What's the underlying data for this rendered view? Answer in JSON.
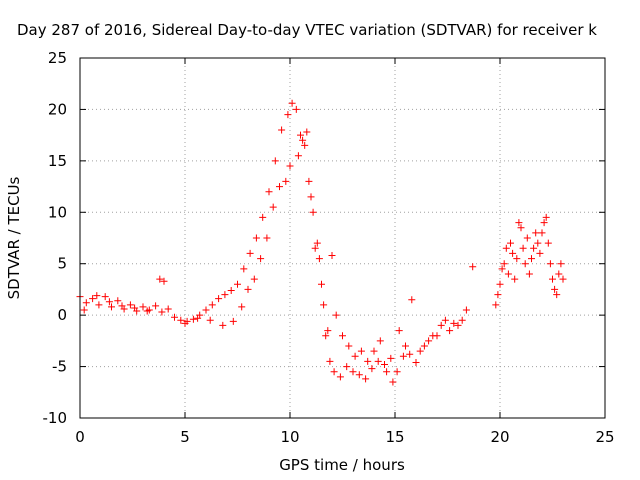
{
  "chart_data": {
    "type": "scatter",
    "title": "Day 287 of 2016, Sidereal Day-to-day VTEC variation (SDTVAR) for receiver k",
    "xlabel": "GPS time / hours",
    "ylabel": "SDTVAR / TECUs",
    "xlim": [
      0,
      25
    ],
    "ylim": [
      -10,
      25
    ],
    "xticks": [
      "0",
      "5",
      "10",
      "15",
      "20",
      "25"
    ],
    "yticks": [
      "-10",
      "-5",
      "0",
      "5",
      "10",
      "15",
      "20",
      "25"
    ],
    "grid": true,
    "marker": "+",
    "color": "#ff0000",
    "series": [
      {
        "name": "SDTVAR",
        "points": [
          [
            0.0,
            1.8
          ],
          [
            0.3,
            1.2
          ],
          [
            0.6,
            1.6
          ],
          [
            0.9,
            1.0
          ],
          [
            1.2,
            1.8
          ],
          [
            1.5,
            0.8
          ],
          [
            1.8,
            1.4
          ],
          [
            2.1,
            0.6
          ],
          [
            2.4,
            1.0
          ],
          [
            2.7,
            0.4
          ],
          [
            3.0,
            0.8
          ],
          [
            3.3,
            0.5
          ],
          [
            3.6,
            0.9
          ],
          [
            3.9,
            0.3
          ],
          [
            4.2,
            0.6
          ],
          [
            4.5,
            -0.2
          ],
          [
            4.8,
            -0.5
          ],
          [
            5.1,
            -0.6
          ],
          [
            5.4,
            -0.4
          ],
          [
            5.7,
            0.0
          ],
          [
            6.0,
            0.5
          ],
          [
            6.3,
            1.0
          ],
          [
            6.6,
            1.6
          ],
          [
            6.9,
            2.0
          ],
          [
            7.2,
            2.4
          ],
          [
            7.5,
            3.0
          ],
          [
            7.8,
            4.5
          ],
          [
            8.1,
            6.0
          ],
          [
            8.4,
            7.5
          ],
          [
            8.7,
            9.5
          ],
          [
            9.0,
            12.0
          ],
          [
            9.3,
            15.0
          ],
          [
            9.6,
            18.0
          ],
          [
            9.9,
            19.5
          ],
          [
            10.1,
            20.6
          ],
          [
            10.3,
            20.0
          ],
          [
            10.5,
            17.5
          ],
          [
            10.7,
            16.5
          ],
          [
            10.9,
            13.0
          ],
          [
            11.1,
            10.0
          ],
          [
            11.3,
            7.0
          ],
          [
            11.5,
            3.0
          ],
          [
            11.7,
            -2.0
          ],
          [
            11.9,
            -4.5
          ],
          [
            12.1,
            -5.5
          ],
          [
            12.4,
            -6.0
          ],
          [
            12.7,
            -5.0
          ],
          [
            13.0,
            -5.5
          ],
          [
            13.3,
            -5.8
          ],
          [
            13.6,
            -6.2
          ],
          [
            13.9,
            -5.2
          ],
          [
            14.2,
            -4.5
          ],
          [
            14.5,
            -4.8
          ],
          [
            14.8,
            -4.2
          ],
          [
            15.1,
            -5.5
          ],
          [
            15.4,
            -4.0
          ],
          [
            15.7,
            -3.8
          ],
          [
            16.0,
            -4.6
          ],
          [
            16.4,
            -3.0
          ],
          [
            16.8,
            -2.0
          ],
          [
            17.2,
            -1.0
          ],
          [
            17.6,
            -1.5
          ],
          [
            18.0,
            -1.0
          ],
          [
            18.4,
            0.5
          ],
          [
            18.7,
            4.7
          ],
          [
            19.8,
            1.0
          ],
          [
            20.0,
            3.0
          ],
          [
            20.2,
            5.0
          ],
          [
            20.4,
            4.0
          ],
          [
            20.6,
            6.0
          ],
          [
            20.8,
            5.5
          ],
          [
            21.0,
            8.5
          ],
          [
            21.2,
            5.0
          ],
          [
            21.4,
            4.0
          ],
          [
            21.6,
            6.5
          ],
          [
            21.8,
            7.0
          ],
          [
            22.0,
            8.0
          ],
          [
            22.2,
            9.5
          ],
          [
            22.4,
            5.0
          ],
          [
            22.6,
            2.5
          ],
          [
            22.8,
            4.0
          ],
          [
            23.0,
            3.5
          ],
          [
            0.2,
            0.5
          ],
          [
            0.8,
            1.9
          ],
          [
            1.4,
            1.3
          ],
          [
            2.0,
            0.9
          ],
          [
            2.6,
            0.7
          ],
          [
            3.2,
            0.4
          ],
          [
            3.8,
            3.5
          ],
          [
            4.0,
            3.3
          ],
          [
            5.0,
            -0.8
          ],
          [
            5.6,
            -0.3
          ],
          [
            6.2,
            -0.5
          ],
          [
            6.8,
            -1.0
          ],
          [
            7.3,
            -0.6
          ],
          [
            7.7,
            0.8
          ],
          [
            8.0,
            2.5
          ],
          [
            8.3,
            3.5
          ],
          [
            8.6,
            5.5
          ],
          [
            8.9,
            7.5
          ],
          [
            9.2,
            10.5
          ],
          [
            9.5,
            12.5
          ],
          [
            9.8,
            13.0
          ],
          [
            10.0,
            14.5
          ],
          [
            10.4,
            15.5
          ],
          [
            10.6,
            17.0
          ],
          [
            10.8,
            17.8
          ],
          [
            11.0,
            11.5
          ],
          [
            11.2,
            6.5
          ],
          [
            11.4,
            5.5
          ],
          [
            11.6,
            1.0
          ],
          [
            11.8,
            -1.5
          ],
          [
            12.0,
            5.8
          ],
          [
            12.2,
            0.0
          ],
          [
            12.5,
            -2.0
          ],
          [
            12.8,
            -3.0
          ],
          [
            13.1,
            -4.0
          ],
          [
            13.4,
            -3.5
          ],
          [
            13.7,
            -4.5
          ],
          [
            14.0,
            -3.5
          ],
          [
            14.3,
            -2.5
          ],
          [
            14.6,
            -5.5
          ],
          [
            14.9,
            -6.5
          ],
          [
            15.2,
            -1.5
          ],
          [
            15.5,
            -3.0
          ],
          [
            15.8,
            1.5
          ],
          [
            16.2,
            -3.5
          ],
          [
            16.6,
            -2.5
          ],
          [
            17.0,
            -2.0
          ],
          [
            17.4,
            -0.5
          ],
          [
            17.8,
            -0.8
          ],
          [
            18.2,
            -0.5
          ],
          [
            19.9,
            2.0
          ],
          [
            20.1,
            4.5
          ],
          [
            20.3,
            6.5
          ],
          [
            20.5,
            7.0
          ],
          [
            20.7,
            3.5
          ],
          [
            20.9,
            9.0
          ],
          [
            21.1,
            6.5
          ],
          [
            21.3,
            7.5
          ],
          [
            21.5,
            5.5
          ],
          [
            21.7,
            8.0
          ],
          [
            21.9,
            6.0
          ],
          [
            22.1,
            9.0
          ],
          [
            22.3,
            7.0
          ],
          [
            22.5,
            3.5
          ],
          [
            22.7,
            2.0
          ],
          [
            22.9,
            5.0
          ]
        ]
      }
    ]
  }
}
